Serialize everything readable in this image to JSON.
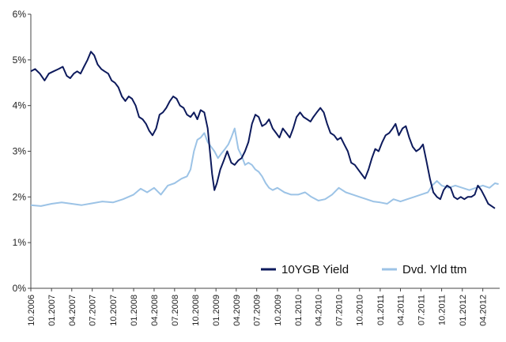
{
  "chart_data": {
    "type": "line",
    "ylim": [
      0,
      6
    ],
    "y_ticks": [
      "0%",
      "1%",
      "2%",
      "3%",
      "4%",
      "5%",
      "6%"
    ],
    "x_ticks": [
      "10.2006",
      "01.2007",
      "04.2007",
      "07.2007",
      "10.2007",
      "01.2008",
      "04.2008",
      "07.2008",
      "10.2008",
      "01.2009",
      "04.2009",
      "07.2009",
      "10.2009",
      "01.2010",
      "04.2010",
      "07.2010",
      "10.2010",
      "01.2011",
      "04.2011",
      "07.2011",
      "10.2011",
      "01.2012",
      "04.2012"
    ],
    "x_range": [
      "2006-10-01",
      "2012-06-15"
    ],
    "grid": false,
    "legend_position": "bottom-right",
    "colors": {
      "10YGB Yield": "#0d1a5c",
      "Dvd. Yld ttm": "#9cc3e6"
    },
    "series": [
      {
        "name": "10YGB Yield",
        "points": [
          [
            "2006-10-01",
            4.75
          ],
          [
            "2006-10-20",
            4.8
          ],
          [
            "2006-11-10",
            4.7
          ],
          [
            "2006-12-01",
            4.55
          ],
          [
            "2006-12-20",
            4.7
          ],
          [
            "2007-01-10",
            4.75
          ],
          [
            "2007-02-01",
            4.8
          ],
          [
            "2007-02-20",
            4.85
          ],
          [
            "2007-03-10",
            4.65
          ],
          [
            "2007-03-25",
            4.6
          ],
          [
            "2007-04-10",
            4.7
          ],
          [
            "2007-04-25",
            4.75
          ],
          [
            "2007-05-10",
            4.7
          ],
          [
            "2007-05-25",
            4.85
          ],
          [
            "2007-06-10",
            5.0
          ],
          [
            "2007-06-25",
            5.18
          ],
          [
            "2007-07-10",
            5.1
          ],
          [
            "2007-07-25",
            4.9
          ],
          [
            "2007-08-10",
            4.8
          ],
          [
            "2007-08-25",
            4.75
          ],
          [
            "2007-09-10",
            4.7
          ],
          [
            "2007-09-25",
            4.55
          ],
          [
            "2007-10-10",
            4.5
          ],
          [
            "2007-10-25",
            4.4
          ],
          [
            "2007-11-10",
            4.2
          ],
          [
            "2007-11-25",
            4.1
          ],
          [
            "2007-12-10",
            4.2
          ],
          [
            "2007-12-25",
            4.15
          ],
          [
            "2008-01-10",
            4.0
          ],
          [
            "2008-01-25",
            3.75
          ],
          [
            "2008-02-10",
            3.7
          ],
          [
            "2008-02-25",
            3.6
          ],
          [
            "2008-03-10",
            3.45
          ],
          [
            "2008-03-25",
            3.35
          ],
          [
            "2008-04-10",
            3.5
          ],
          [
            "2008-04-25",
            3.8
          ],
          [
            "2008-05-10",
            3.85
          ],
          [
            "2008-05-25",
            3.95
          ],
          [
            "2008-06-10",
            4.1
          ],
          [
            "2008-06-25",
            4.2
          ],
          [
            "2008-07-10",
            4.15
          ],
          [
            "2008-07-25",
            4.0
          ],
          [
            "2008-08-10",
            3.95
          ],
          [
            "2008-08-25",
            3.8
          ],
          [
            "2008-09-10",
            3.75
          ],
          [
            "2008-09-25",
            3.85
          ],
          [
            "2008-10-10",
            3.7
          ],
          [
            "2008-10-25",
            3.9
          ],
          [
            "2008-11-10",
            3.85
          ],
          [
            "2008-11-25",
            3.5
          ],
          [
            "2008-12-05",
            3.0
          ],
          [
            "2008-12-15",
            2.5
          ],
          [
            "2008-12-25",
            2.15
          ],
          [
            "2009-01-05",
            2.3
          ],
          [
            "2009-01-20",
            2.6
          ],
          [
            "2009-02-05",
            2.8
          ],
          [
            "2009-02-20",
            3.0
          ],
          [
            "2009-03-10",
            2.75
          ],
          [
            "2009-03-25",
            2.7
          ],
          [
            "2009-04-10",
            2.8
          ],
          [
            "2009-04-25",
            2.85
          ],
          [
            "2009-05-10",
            3.0
          ],
          [
            "2009-05-25",
            3.2
          ],
          [
            "2009-06-10",
            3.6
          ],
          [
            "2009-06-25",
            3.8
          ],
          [
            "2009-07-10",
            3.75
          ],
          [
            "2009-07-25",
            3.55
          ],
          [
            "2009-08-10",
            3.6
          ],
          [
            "2009-08-25",
            3.7
          ],
          [
            "2009-09-10",
            3.5
          ],
          [
            "2009-09-25",
            3.4
          ],
          [
            "2009-10-10",
            3.3
          ],
          [
            "2009-10-25",
            3.5
          ],
          [
            "2009-11-10",
            3.4
          ],
          [
            "2009-11-25",
            3.3
          ],
          [
            "2009-12-10",
            3.5
          ],
          [
            "2009-12-25",
            3.75
          ],
          [
            "2010-01-10",
            3.85
          ],
          [
            "2010-01-25",
            3.75
          ],
          [
            "2010-02-10",
            3.7
          ],
          [
            "2010-02-25",
            3.65
          ],
          [
            "2010-03-10",
            3.75
          ],
          [
            "2010-03-25",
            3.85
          ],
          [
            "2010-04-10",
            3.95
          ],
          [
            "2010-04-25",
            3.85
          ],
          [
            "2010-05-10",
            3.6
          ],
          [
            "2010-05-25",
            3.4
          ],
          [
            "2010-06-10",
            3.35
          ],
          [
            "2010-06-25",
            3.25
          ],
          [
            "2010-07-10",
            3.3
          ],
          [
            "2010-07-25",
            3.15
          ],
          [
            "2010-08-10",
            3.0
          ],
          [
            "2010-08-25",
            2.75
          ],
          [
            "2010-09-10",
            2.7
          ],
          [
            "2010-09-25",
            2.6
          ],
          [
            "2010-10-10",
            2.5
          ],
          [
            "2010-10-25",
            2.4
          ],
          [
            "2010-11-10",
            2.6
          ],
          [
            "2010-11-25",
            2.85
          ],
          [
            "2010-12-10",
            3.05
          ],
          [
            "2010-12-25",
            3.0
          ],
          [
            "2011-01-10",
            3.2
          ],
          [
            "2011-01-25",
            3.35
          ],
          [
            "2011-02-10",
            3.4
          ],
          [
            "2011-02-25",
            3.5
          ],
          [
            "2011-03-10",
            3.6
          ],
          [
            "2011-03-25",
            3.35
          ],
          [
            "2011-04-10",
            3.5
          ],
          [
            "2011-04-25",
            3.55
          ],
          [
            "2011-05-10",
            3.3
          ],
          [
            "2011-05-25",
            3.1
          ],
          [
            "2011-06-10",
            3.0
          ],
          [
            "2011-06-25",
            3.05
          ],
          [
            "2011-07-10",
            3.15
          ],
          [
            "2011-07-25",
            2.8
          ],
          [
            "2011-08-10",
            2.4
          ],
          [
            "2011-08-25",
            2.1
          ],
          [
            "2011-09-10",
            2.0
          ],
          [
            "2011-09-25",
            1.95
          ],
          [
            "2011-10-10",
            2.15
          ],
          [
            "2011-10-25",
            2.25
          ],
          [
            "2011-11-10",
            2.2
          ],
          [
            "2011-11-25",
            2.0
          ],
          [
            "2011-12-10",
            1.95
          ],
          [
            "2011-12-25",
            2.0
          ],
          [
            "2012-01-10",
            1.95
          ],
          [
            "2012-01-25",
            2.0
          ],
          [
            "2012-02-10",
            2.0
          ],
          [
            "2012-02-25",
            2.05
          ],
          [
            "2012-03-10",
            2.25
          ],
          [
            "2012-03-25",
            2.15
          ],
          [
            "2012-04-10",
            2.0
          ],
          [
            "2012-04-25",
            1.85
          ],
          [
            "2012-05-10",
            1.8
          ],
          [
            "2012-05-25",
            1.75
          ]
        ]
      },
      {
        "name": "Dvd. Yld ttm",
        "points": [
          [
            "2006-10-01",
            1.82
          ],
          [
            "2006-11-15",
            1.8
          ],
          [
            "2007-01-01",
            1.85
          ],
          [
            "2007-02-15",
            1.88
          ],
          [
            "2007-04-01",
            1.85
          ],
          [
            "2007-05-15",
            1.82
          ],
          [
            "2007-07-01",
            1.86
          ],
          [
            "2007-08-15",
            1.9
          ],
          [
            "2007-10-01",
            1.88
          ],
          [
            "2007-11-15",
            1.95
          ],
          [
            "2008-01-01",
            2.05
          ],
          [
            "2008-02-01",
            2.18
          ],
          [
            "2008-03-01",
            2.1
          ],
          [
            "2008-04-01",
            2.2
          ],
          [
            "2008-05-01",
            2.05
          ],
          [
            "2008-06-01",
            2.25
          ],
          [
            "2008-07-01",
            2.3
          ],
          [
            "2008-08-01",
            2.4
          ],
          [
            "2008-08-25",
            2.45
          ],
          [
            "2008-09-10",
            2.6
          ],
          [
            "2008-09-25",
            3.0
          ],
          [
            "2008-10-10",
            3.25
          ],
          [
            "2008-10-25",
            3.3
          ],
          [
            "2008-11-10",
            3.4
          ],
          [
            "2008-11-25",
            3.2
          ],
          [
            "2008-12-10",
            3.1
          ],
          [
            "2008-12-25",
            3.0
          ],
          [
            "2009-01-10",
            2.85
          ],
          [
            "2009-01-25",
            2.95
          ],
          [
            "2009-02-10",
            3.05
          ],
          [
            "2009-02-25",
            3.15
          ],
          [
            "2009-03-10",
            3.3
          ],
          [
            "2009-03-25",
            3.5
          ],
          [
            "2009-04-10",
            3.05
          ],
          [
            "2009-04-25",
            2.9
          ],
          [
            "2009-05-10",
            2.7
          ],
          [
            "2009-05-25",
            2.75
          ],
          [
            "2009-06-10",
            2.7
          ],
          [
            "2009-06-25",
            2.6
          ],
          [
            "2009-07-10",
            2.55
          ],
          [
            "2009-07-25",
            2.45
          ],
          [
            "2009-08-10",
            2.3
          ],
          [
            "2009-08-25",
            2.2
          ],
          [
            "2009-09-10",
            2.15
          ],
          [
            "2009-10-01",
            2.2
          ],
          [
            "2009-11-01",
            2.1
          ],
          [
            "2009-12-01",
            2.05
          ],
          [
            "2010-01-01",
            2.05
          ],
          [
            "2010-02-01",
            2.1
          ],
          [
            "2010-03-01",
            2.0
          ],
          [
            "2010-04-01",
            1.92
          ],
          [
            "2010-05-01",
            1.95
          ],
          [
            "2010-06-01",
            2.05
          ],
          [
            "2010-07-01",
            2.2
          ],
          [
            "2010-08-01",
            2.1
          ],
          [
            "2010-09-01",
            2.05
          ],
          [
            "2010-10-01",
            2.0
          ],
          [
            "2010-11-01",
            1.95
          ],
          [
            "2010-12-01",
            1.9
          ],
          [
            "2011-01-01",
            1.88
          ],
          [
            "2011-02-01",
            1.85
          ],
          [
            "2011-03-01",
            1.95
          ],
          [
            "2011-04-01",
            1.9
          ],
          [
            "2011-05-01",
            1.95
          ],
          [
            "2011-06-01",
            2.0
          ],
          [
            "2011-07-01",
            2.05
          ],
          [
            "2011-08-01",
            2.1
          ],
          [
            "2011-08-20",
            2.25
          ],
          [
            "2011-09-10",
            2.35
          ],
          [
            "2011-10-01",
            2.25
          ],
          [
            "2011-11-01",
            2.2
          ],
          [
            "2011-12-01",
            2.25
          ],
          [
            "2012-01-01",
            2.2
          ],
          [
            "2012-02-01",
            2.15
          ],
          [
            "2012-03-01",
            2.2
          ],
          [
            "2012-04-01",
            2.25
          ],
          [
            "2012-05-01",
            2.2
          ],
          [
            "2012-05-25",
            2.3
          ],
          [
            "2012-06-10",
            2.28
          ]
        ]
      }
    ]
  }
}
